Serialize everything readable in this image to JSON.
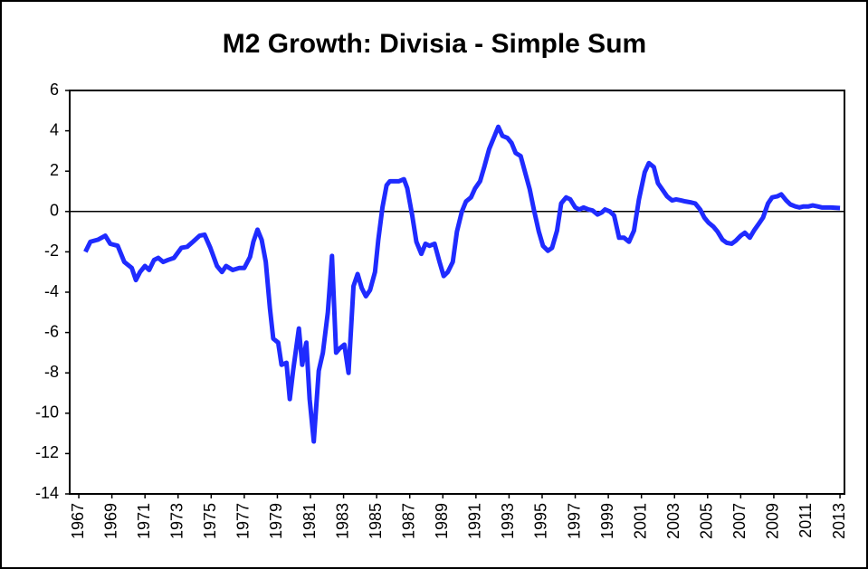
{
  "chart_data": {
    "type": "line",
    "title": "M2 Growth: Divisia - Simple Sum",
    "x": [
      1967.4,
      1967.7,
      1968.15,
      1968.6,
      1968.9,
      1969.35,
      1969.75,
      1970.2,
      1970.45,
      1970.7,
      1971.0,
      1971.25,
      1971.55,
      1971.8,
      1972.1,
      1972.4,
      1972.75,
      1973.2,
      1973.55,
      1973.9,
      1974.3,
      1974.6,
      1974.95,
      1975.35,
      1975.65,
      1975.9,
      1976.3,
      1976.7,
      1977.0,
      1977.35,
      1977.55,
      1977.8,
      1978.05,
      1978.3,
      1978.55,
      1978.75,
      1979.05,
      1979.25,
      1979.55,
      1979.75,
      1979.95,
      1980.3,
      1980.5,
      1980.75,
      1980.95,
      1981.2,
      1981.5,
      1981.75,
      1982.05,
      1982.3,
      1982.55,
      1982.75,
      1983.05,
      1983.3,
      1983.6,
      1983.85,
      1984.1,
      1984.35,
      1984.6,
      1984.9,
      1985.1,
      1985.35,
      1985.6,
      1985.8,
      1986.15,
      1986.35,
      1986.65,
      1986.85,
      1987.15,
      1987.4,
      1987.7,
      1987.95,
      1988.2,
      1988.5,
      1988.8,
      1989.05,
      1989.3,
      1989.6,
      1989.85,
      1990.15,
      1990.4,
      1990.7,
      1990.95,
      1991.25,
      1991.5,
      1991.8,
      1992.05,
      1992.35,
      1992.6,
      1992.9,
      1993.15,
      1993.4,
      1993.7,
      1993.95,
      1994.25,
      1994.5,
      1994.8,
      1995.05,
      1995.35,
      1995.6,
      1995.9,
      1996.15,
      1996.45,
      1996.7,
      1997.0,
      1997.25,
      1997.5,
      1997.8,
      1998.05,
      1998.35,
      1998.6,
      1998.8,
      1999.1,
      1999.35,
      1999.65,
      1999.95,
      2000.25,
      2000.55,
      2000.85,
      2001.2,
      2001.45,
      2001.75,
      2002.0,
      2002.3,
      2002.55,
      2002.85,
      2003.1,
      2003.4,
      2003.65,
      2004.0,
      2004.25,
      2004.55,
      2004.8,
      2005.05,
      2005.35,
      2005.6,
      2005.9,
      2006.15,
      2006.45,
      2006.7,
      2007.0,
      2007.25,
      2007.55,
      2007.8,
      2008.1,
      2008.35,
      2008.65,
      2008.9,
      2009.2,
      2009.45,
      2009.75,
      2010.0,
      2010.3,
      2010.55,
      2010.8,
      2011.1,
      2011.35,
      2011.65,
      2011.9,
      2012.2,
      2012.45,
      2013.0
    ],
    "values": [
      -2.0,
      -1.5,
      -1.4,
      -1.2,
      -1.6,
      -1.7,
      -2.5,
      -2.8,
      -3.4,
      -3.0,
      -2.7,
      -2.9,
      -2.4,
      -2.3,
      -2.5,
      -2.4,
      -2.3,
      -1.8,
      -1.75,
      -1.5,
      -1.2,
      -1.15,
      -1.8,
      -2.7,
      -3.0,
      -2.7,
      -2.9,
      -2.8,
      -2.8,
      -2.25,
      -1.5,
      -0.9,
      -1.4,
      -2.5,
      -4.8,
      -6.3,
      -6.5,
      -7.6,
      -7.5,
      -9.3,
      -7.9,
      -5.8,
      -7.6,
      -6.5,
      -9.3,
      -11.4,
      -7.9,
      -7.0,
      -5.0,
      -2.2,
      -7.0,
      -6.8,
      -6.6,
      -8.0,
      -3.7,
      -3.1,
      -3.8,
      -4.2,
      -3.9,
      -3.0,
      -1.4,
      0.2,
      1.3,
      1.5,
      1.5,
      1.5,
      1.6,
      1.15,
      -0.2,
      -1.5,
      -2.1,
      -1.6,
      -1.7,
      -1.6,
      -2.5,
      -3.2,
      -3.0,
      -2.5,
      -1.0,
      0,
      0.5,
      0.7,
      1.15,
      1.5,
      2.2,
      3.1,
      3.6,
      4.2,
      3.75,
      3.65,
      3.4,
      2.9,
      2.75,
      2.0,
      1.1,
      0.1,
      -1.0,
      -1.7,
      -1.95,
      -1.8,
      -0.95,
      0.4,
      0.7,
      0.6,
      0.2,
      0.1,
      0.2,
      0.1,
      0.05,
      -0.15,
      -0.05,
      0.1,
      0,
      -0.2,
      -1.3,
      -1.3,
      -1.5,
      -0.95,
      0.6,
      1.95,
      2.4,
      2.2,
      1.4,
      1.05,
      0.75,
      0.55,
      0.6,
      0.55,
      0.5,
      0.45,
      0.4,
      0.1,
      -0.3,
      -0.55,
      -0.75,
      -1.0,
      -1.4,
      -1.55,
      -1.6,
      -1.45,
      -1.2,
      -1.05,
      -1.3,
      -0.95,
      -0.6,
      -0.3,
      0.4,
      0.7,
      0.75,
      0.85,
      0.55,
      0.35,
      0.25,
      0.2,
      0.25,
      0.25,
      0.3,
      0.25,
      0.2,
      0.2,
      0.2,
      0.17
    ],
    "color": "#1f2bff",
    "xlim": [
      1966.45,
      2013.27
    ],
    "xticks": [
      1967,
      1969,
      1971,
      1973,
      1975,
      1977,
      1979,
      1981,
      1983,
      1985,
      1987,
      1989,
      1991,
      1993,
      1995,
      1997,
      1999,
      2001,
      2003,
      2005,
      2007,
      2009,
      2011,
      2013
    ],
    "ylim": [
      -14,
      6
    ],
    "yticks": [
      -14,
      -12,
      -10,
      -8,
      -6,
      -4,
      -2,
      0,
      2,
      4,
      6
    ]
  }
}
